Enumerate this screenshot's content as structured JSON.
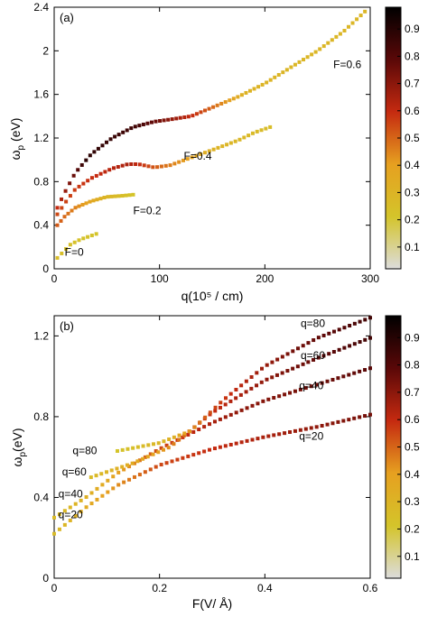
{
  "colorbar": {
    "tick_labels": [
      "0.1",
      "0.2",
      "0.3",
      "0.4",
      "0.5",
      "0.6",
      "0.7",
      "0.8",
      "0.9"
    ],
    "tick_values": [
      0.1,
      0.2,
      0.3,
      0.4,
      0.5,
      0.6,
      0.7,
      0.8,
      0.9
    ],
    "range": [
      0.02,
      0.98
    ],
    "colormap": [
      "#dcdcdc",
      "#d4c42a",
      "#e6a020",
      "#c52a10",
      "#5a0808",
      "#000000"
    ]
  },
  "chart_data": [
    {
      "type": "scatter",
      "panel_label": "(a)",
      "xlabel": "q(10⁵ / cm)",
      "ylabel": "ωp (eV)",
      "ylabel_main": "ω",
      "ylabel_sub": "p",
      "ylabel_unit": " (eV)",
      "xlim": [
        0,
        300
      ],
      "ylim": [
        0,
        2.4
      ],
      "x_ticks": [
        0,
        100,
        200,
        300
      ],
      "x_tick_labels": [
        "0",
        "100",
        "200",
        "300"
      ],
      "y_ticks": [
        0,
        0.4,
        0.8,
        1.2,
        1.6,
        2.0,
        2.4
      ],
      "y_tick_labels": [
        "0",
        "0.4",
        "0.8",
        "1.2",
        "1.6",
        "2",
        "2.4"
      ],
      "grid": false,
      "annotations": [
        {
          "text": "F=0",
          "x": 10,
          "y": 0.12
        },
        {
          "text": "F=0.2",
          "x": 75,
          "y": 0.5
        },
        {
          "text": "F=0.4",
          "x": 123,
          "y": 1.0
        },
        {
          "text": "F=0.6",
          "x": 265,
          "y": 1.84
        }
      ],
      "series": [
        {
          "label": "F=0",
          "x_start": 3,
          "x_end": 40,
          "points": 10,
          "y_at": [
            [
              3,
              0.1
            ],
            [
              15,
              0.22
            ],
            [
              25,
              0.27
            ],
            [
              40,
              0.32
            ]
          ],
          "intensity": [
            [
              3,
              0.24
            ],
            [
              40,
              0.2
            ]
          ]
        },
        {
          "label": "F=0.2",
          "x_start": 3,
          "x_end": 75,
          "points": 22,
          "y_at": [
            [
              3,
              0.4
            ],
            [
              10,
              0.48
            ],
            [
              20,
              0.56
            ],
            [
              35,
              0.62
            ],
            [
              50,
              0.66
            ],
            [
              65,
              0.67
            ],
            [
              75,
              0.68
            ]
          ],
          "intensity": [
            [
              3,
              0.52
            ],
            [
              20,
              0.45
            ],
            [
              45,
              0.3
            ],
            [
              75,
              0.2
            ]
          ]
        },
        {
          "label": "F=0.4",
          "x_start": 3,
          "x_end": 205,
          "points": 50,
          "y_at": [
            [
              3,
              0.5
            ],
            [
              10,
              0.6
            ],
            [
              20,
              0.73
            ],
            [
              35,
              0.83
            ],
            [
              55,
              0.92
            ],
            [
              70,
              0.96
            ],
            [
              80,
              0.96
            ],
            [
              95,
              0.93
            ],
            [
              110,
              0.95
            ],
            [
              130,
              1.02
            ],
            [
              150,
              1.09
            ],
            [
              175,
              1.18
            ],
            [
              190,
              1.25
            ],
            [
              205,
              1.3
            ]
          ],
          "intensity": [
            [
              3,
              0.55
            ],
            [
              40,
              0.6
            ],
            [
              70,
              0.65
            ],
            [
              100,
              0.5
            ],
            [
              150,
              0.3
            ],
            [
              205,
              0.24
            ]
          ]
        },
        {
          "label": "F=0.6",
          "x_start": 3,
          "x_end": 295,
          "points": 76,
          "y_at": [
            [
              3,
              0.56
            ],
            [
              10,
              0.7
            ],
            [
              20,
              0.88
            ],
            [
              35,
              1.05
            ],
            [
              55,
              1.2
            ],
            [
              75,
              1.3
            ],
            [
              95,
              1.35
            ],
            [
              110,
              1.37
            ],
            [
              130,
              1.4
            ],
            [
              150,
              1.48
            ],
            [
              175,
              1.58
            ],
            [
              200,
              1.7
            ],
            [
              225,
              1.85
            ],
            [
              250,
              2.0
            ],
            [
              275,
              2.18
            ],
            [
              295,
              2.36
            ]
          ],
          "intensity": [
            [
              3,
              0.6
            ],
            [
              30,
              0.9
            ],
            [
              80,
              0.85
            ],
            [
              120,
              0.65
            ],
            [
              150,
              0.5
            ],
            [
              180,
              0.3
            ],
            [
              220,
              0.28
            ],
            [
              295,
              0.28
            ]
          ]
        }
      ]
    },
    {
      "type": "scatter",
      "panel_label": "(b)",
      "xlabel": "F(V/ Å)",
      "ylabel": "ωp (eV)",
      "ylabel_main": "ω",
      "ylabel_sub": "p",
      "ylabel_unit": "(eV)",
      "xlim": [
        0,
        0.6
      ],
      "ylim": [
        0,
        1.3
      ],
      "x_ticks": [
        0,
        0.2,
        0.4,
        0.6
      ],
      "x_tick_labels": [
        "0",
        "0.2",
        "0.4",
        "0.6"
      ],
      "y_ticks": [
        0,
        0.4,
        0.8,
        1.2
      ],
      "y_tick_labels": [
        "0",
        "0.4",
        "0.8",
        "1.2"
      ],
      "grid": false,
      "annotations": [
        {
          "text": "q=80",
          "x": 0.468,
          "y": 1.245
        },
        {
          "text": "q=60",
          "x": 0.468,
          "y": 1.085
        },
        {
          "text": "q=40",
          "x": 0.465,
          "y": 0.935
        },
        {
          "text": "q=20",
          "x": 0.465,
          "y": 0.685
        },
        {
          "text": "q=80",
          "x": 0.035,
          "y": 0.615
        },
        {
          "text": "q=60",
          "x": 0.015,
          "y": 0.51
        },
        {
          "text": "q=40",
          "x": 0.008,
          "y": 0.4
        },
        {
          "text": "q=20",
          "x": 0.008,
          "y": 0.298
        }
      ],
      "series": [
        {
          "label": "q=20",
          "x_start": 0.0,
          "x_end": 0.6,
          "points": 60,
          "y_at": [
            [
              0.0,
              0.22
            ],
            [
              0.06,
              0.35
            ],
            [
              0.12,
              0.46
            ],
            [
              0.2,
              0.56
            ],
            [
              0.3,
              0.64
            ],
            [
              0.4,
              0.7
            ],
            [
              0.5,
              0.75
            ],
            [
              0.6,
              0.81
            ]
          ],
          "intensity": [
            [
              0.0,
              0.25
            ],
            [
              0.1,
              0.4
            ],
            [
              0.2,
              0.55
            ],
            [
              0.4,
              0.65
            ],
            [
              0.6,
              0.75
            ]
          ]
        },
        {
          "label": "q=40",
          "x_start": 0.0,
          "x_end": 0.6,
          "points": 60,
          "y_at": [
            [
              0.0,
              0.3
            ],
            [
              0.06,
              0.4
            ],
            [
              0.12,
              0.52
            ],
            [
              0.2,
              0.64
            ],
            [
              0.3,
              0.77
            ],
            [
              0.4,
              0.88
            ],
            [
              0.5,
              0.96
            ],
            [
              0.6,
              1.04
            ]
          ],
          "intensity": [
            [
              0.0,
              0.25
            ],
            [
              0.1,
              0.35
            ],
            [
              0.2,
              0.55
            ],
            [
              0.35,
              0.7
            ],
            [
              0.6,
              0.8
            ]
          ]
        },
        {
          "label": "q=60",
          "x_start": 0.07,
          "x_end": 0.6,
          "points": 55,
          "y_at": [
            [
              0.07,
              0.5
            ],
            [
              0.15,
              0.57
            ],
            [
              0.22,
              0.65
            ],
            [
              0.3,
              0.82
            ],
            [
              0.4,
              0.98
            ],
            [
              0.5,
              1.09
            ],
            [
              0.6,
              1.19
            ]
          ],
          "intensity": [
            [
              0.07,
              0.25
            ],
            [
              0.2,
              0.4
            ],
            [
              0.3,
              0.6
            ],
            [
              0.45,
              0.75
            ],
            [
              0.6,
              0.85
            ]
          ]
        },
        {
          "label": "q=80",
          "x_start": 0.12,
          "x_end": 0.6,
          "points": 50,
          "y_at": [
            [
              0.12,
              0.63
            ],
            [
              0.2,
              0.67
            ],
            [
              0.26,
              0.73
            ],
            [
              0.32,
              0.88
            ],
            [
              0.4,
              1.05
            ],
            [
              0.5,
              1.19
            ],
            [
              0.6,
              1.29
            ]
          ],
          "intensity": [
            [
              0.12,
              0.2
            ],
            [
              0.22,
              0.3
            ],
            [
              0.3,
              0.55
            ],
            [
              0.45,
              0.75
            ],
            [
              0.6,
              0.85
            ]
          ]
        }
      ]
    }
  ]
}
